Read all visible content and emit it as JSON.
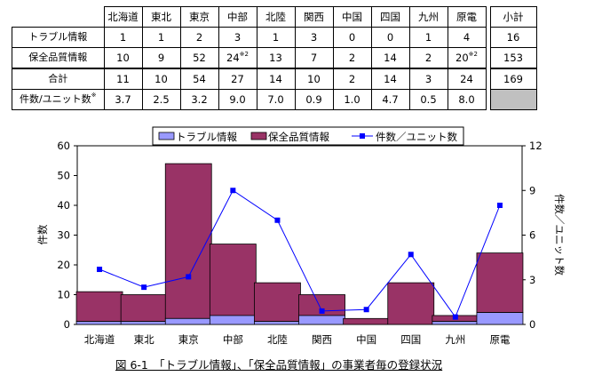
{
  "table": {
    "regions": [
      "北海道",
      "東北",
      "東京",
      "中部",
      "北陸",
      "関西",
      "中国",
      "四国",
      "九州",
      "原電"
    ],
    "subtotal_header": "小計",
    "rows": [
      {
        "label": "トラブル情報",
        "cells": [
          "1",
          "1",
          "2",
          "3",
          "1",
          "3",
          "0",
          "0",
          "1",
          "4"
        ],
        "subtotal": "16"
      },
      {
        "label": "保全品質情報",
        "cells": [
          "10",
          "9",
          "52",
          "24",
          "13",
          "7",
          "2",
          "14",
          "2",
          "20"
        ],
        "subtotal": "153",
        "notes": {
          "3": "※2",
          "9": "※2"
        }
      },
      {
        "label": "合計",
        "cells": [
          "11",
          "10",
          "54",
          "27",
          "14",
          "10",
          "2",
          "14",
          "3",
          "24"
        ],
        "subtotal": "169"
      },
      {
        "label": "件数/ユニット数",
        "label_note": "※",
        "cells": [
          "3.7",
          "2.5",
          "3.2",
          "9.0",
          "7.0",
          "0.9",
          "1.0",
          "4.7",
          "0.5",
          "8.0"
        ],
        "subtotal": ""
      }
    ]
  },
  "chart_data": {
    "type": "bar",
    "stacked": true,
    "categories": [
      "北海道",
      "東北",
      "東京",
      "中部",
      "北陸",
      "関西",
      "中国",
      "四国",
      "九州",
      "原電"
    ],
    "series": [
      {
        "name": "トラブル情報",
        "type": "bar",
        "axis": "left",
        "color": "#9999ff",
        "values": [
          1,
          1,
          2,
          3,
          1,
          3,
          0,
          0,
          1,
          4
        ]
      },
      {
        "name": "保全品質情報",
        "type": "bar",
        "axis": "left",
        "color": "#993366",
        "values": [
          10,
          9,
          52,
          24,
          13,
          7,
          2,
          14,
          2,
          20
        ]
      },
      {
        "name": "件数／ユニット数",
        "type": "line",
        "axis": "right",
        "color": "#0000ff",
        "values": [
          3.7,
          2.5,
          3.2,
          9.0,
          7.0,
          0.9,
          1.0,
          4.7,
          0.5,
          8.0
        ]
      }
    ],
    "ylabel": "件数",
    "y2label": "件数／ユニット数",
    "ylim": [
      0,
      60
    ],
    "yticks": [
      0,
      10,
      20,
      30,
      40,
      50,
      60
    ],
    "y2lim": [
      0,
      12
    ],
    "y2ticks": [
      0,
      3,
      6,
      9,
      12
    ],
    "legend_position": "top",
    "grid": false
  },
  "caption": "図 6-1　「トラブル情報」、「保全品質情報」の事業者毎の登録状況"
}
